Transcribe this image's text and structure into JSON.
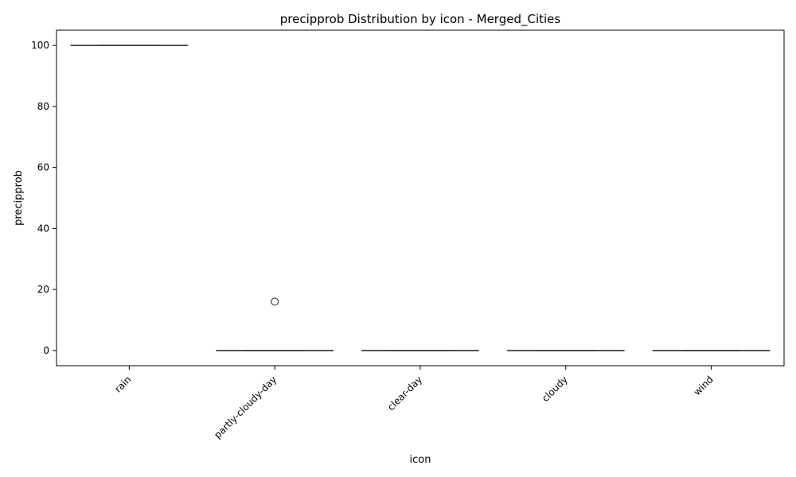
{
  "chart_data": {
    "type": "box",
    "title": "precipprob Distribution by icon - Merged_Cities",
    "xlabel": "icon",
    "ylabel": "precipprob",
    "ylim": [
      -5,
      105
    ],
    "yticks": [
      0,
      20,
      40,
      60,
      80,
      100
    ],
    "categories": [
      "rain",
      "partly-cloudy-day",
      "clear-day",
      "cloudy",
      "wind"
    ],
    "boxes": [
      {
        "category": "rain",
        "q1": 100,
        "median": 100,
        "q3": 100,
        "whisker_low": 100,
        "whisker_high": 100,
        "fliers": []
      },
      {
        "category": "partly-cloudy-day",
        "q1": 0,
        "median": 0,
        "q3": 0,
        "whisker_low": 0,
        "whisker_high": 0,
        "fliers": [
          16
        ]
      },
      {
        "category": "clear-day",
        "q1": 0,
        "median": 0,
        "q3": 0,
        "whisker_low": 0,
        "whisker_high": 0,
        "fliers": []
      },
      {
        "category": "cloudy",
        "q1": 0,
        "median": 0,
        "q3": 0,
        "whisker_low": 0,
        "whisker_high": 0,
        "fliers": []
      },
      {
        "category": "wind",
        "q1": 0,
        "median": 0,
        "q3": 0,
        "whisker_low": 0,
        "whisker_high": 0,
        "fliers": []
      }
    ],
    "grid": false,
    "colors": {
      "box": "#3f3f3f",
      "axis": "#000000"
    }
  }
}
